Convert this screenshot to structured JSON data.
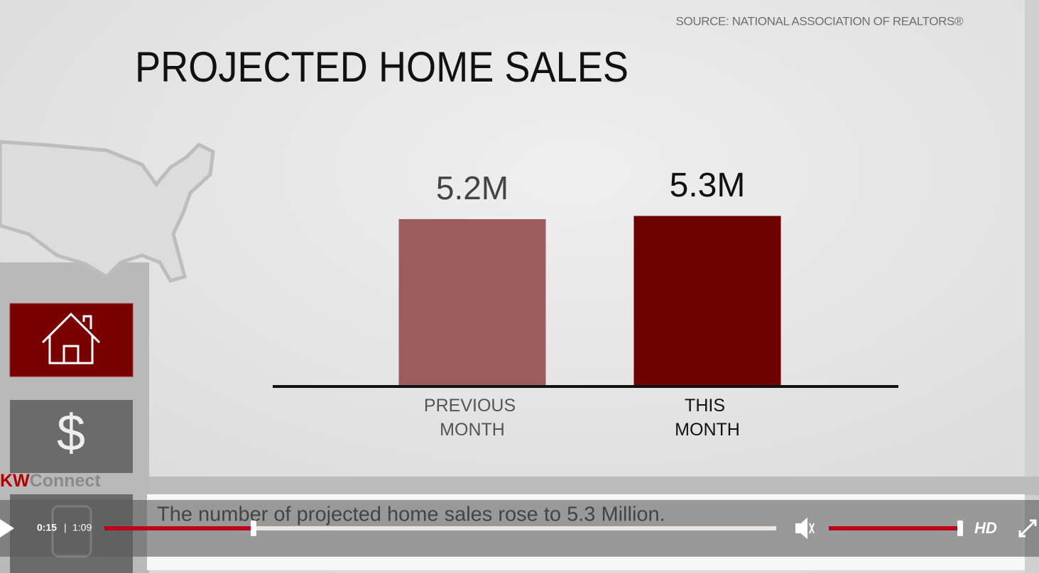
{
  "source": "SOURCE: NATIONAL ASSOCIATION OF REALTORS®",
  "chart_data": {
    "type": "bar",
    "title": "PROJECTED HOME SALES",
    "categories": [
      "PREVIOUS MONTH",
      "THIS MONTH"
    ],
    "values": [
      5.2,
      5.3
    ],
    "value_labels": [
      "5.2M",
      "5.3M"
    ],
    "colors": [
      "#9a5c5c",
      "#6e0000"
    ]
  },
  "nav": {
    "dollar_icon": "$"
  },
  "logo": {
    "brand": "KW",
    "product": "Connect"
  },
  "caption": "The number of projected home sales rose to 5.3 Million.",
  "player": {
    "current_time": "0:15",
    "separator": "|",
    "duration": "1:09",
    "quality": "HD"
  }
}
